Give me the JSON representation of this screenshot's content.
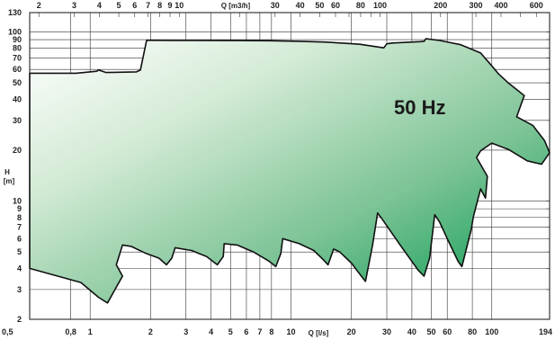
{
  "chart_data": {
    "type": "area",
    "title": "",
    "annotation": "50 Hz",
    "xlabel_bottom": "Q [l/s]",
    "xlabel_top": "Q [m3/h]",
    "ylabel": "H\n[m]",
    "x_scale": "log",
    "y_scale": "log",
    "xlim": [
      0.5,
      194
    ],
    "ylim": [
      2,
      130
    ],
    "grid": true,
    "fill_gradient": [
      "#ffffff",
      "#b9dcbd",
      "#5fb783",
      "#00994c"
    ],
    "outline_color": "#111111",
    "bottom_ticks": [
      {
        "v": 0.5,
        "label": "0,5"
      },
      {
        "v": 0.8,
        "label": "0,8"
      },
      {
        "v": 1,
        "label": "1"
      },
      {
        "v": 2,
        "label": "2"
      },
      {
        "v": 3,
        "label": "3"
      },
      {
        "v": 4,
        "label": "4"
      },
      {
        "v": 5,
        "label": "5"
      },
      {
        "v": 6,
        "label": "6"
      },
      {
        "v": 7,
        "label": "7"
      },
      {
        "v": 8,
        "label": "8"
      },
      {
        "v": 10,
        "label": "10"
      },
      {
        "v": 20,
        "label": "20"
      },
      {
        "v": 30,
        "label": "30"
      },
      {
        "v": 40,
        "label": "40"
      },
      {
        "v": 50,
        "label": "50"
      },
      {
        "v": 60,
        "label": "60"
      },
      {
        "v": 80,
        "label": "80"
      },
      {
        "v": 100,
        "label": "100"
      },
      {
        "v": 194,
        "label": "194"
      }
    ],
    "top_ticks": [
      {
        "v": 2,
        "label": "2"
      },
      {
        "v": 3,
        "label": "3"
      },
      {
        "v": 4,
        "label": "4"
      },
      {
        "v": 5,
        "label": "5"
      },
      {
        "v": 6,
        "label": "6"
      },
      {
        "v": 7,
        "label": "7"
      },
      {
        "v": 8,
        "label": "8"
      },
      {
        "v": 9,
        "label": "9"
      },
      {
        "v": 10,
        "label": "10"
      },
      {
        "v": 30,
        "label": "30"
      },
      {
        "v": 40,
        "label": "40"
      },
      {
        "v": 50,
        "label": "50"
      },
      {
        "v": 60,
        "label": "60"
      },
      {
        "v": 80,
        "label": "80"
      },
      {
        "v": 100,
        "label": "100"
      },
      {
        "v": 200,
        "label": "200"
      },
      {
        "v": 300,
        "label": "300"
      },
      {
        "v": 400,
        "label": "400"
      },
      {
        "v": 600,
        "label": "600"
      }
    ],
    "y_ticks": [
      {
        "v": 2,
        "label": "2"
      },
      {
        "v": 3,
        "label": "3"
      },
      {
        "v": 4,
        "label": "4"
      },
      {
        "v": 5,
        "label": "5"
      },
      {
        "v": 6,
        "label": "6"
      },
      {
        "v": 7,
        "label": "7"
      },
      {
        "v": 8,
        "label": "8"
      },
      {
        "v": 9,
        "label": "9"
      },
      {
        "v": 10,
        "label": "10"
      },
      {
        "v": 20,
        "label": "20"
      },
      {
        "v": 30,
        "label": "30"
      },
      {
        "v": 40,
        "label": "40"
      },
      {
        "v": 50,
        "label": "50"
      },
      {
        "v": 60,
        "label": "60"
      },
      {
        "v": 70,
        "label": "70"
      },
      {
        "v": 80,
        "label": "80"
      },
      {
        "v": 90,
        "label": "90"
      },
      {
        "v": 100,
        "label": "100"
      },
      {
        "v": 130,
        "label": "130"
      }
    ],
    "envelope": [
      [
        0.5,
        4.0
      ],
      [
        0.9,
        3.3
      ],
      [
        1.1,
        2.7
      ],
      [
        1.22,
        2.5
      ],
      [
        1.45,
        3.6
      ],
      [
        1.35,
        4.2
      ],
      [
        1.45,
        5.5
      ],
      [
        1.6,
        5.4
      ],
      [
        1.9,
        4.9
      ],
      [
        2.2,
        4.6
      ],
      [
        2.4,
        4.2
      ],
      [
        2.55,
        4.6
      ],
      [
        2.65,
        5.3
      ],
      [
        3.2,
        5.1
      ],
      [
        3.8,
        4.7
      ],
      [
        4.3,
        4.2
      ],
      [
        4.6,
        4.7
      ],
      [
        4.65,
        5.6
      ],
      [
        5.4,
        5.5
      ],
      [
        6.5,
        5.0
      ],
      [
        7.8,
        4.4
      ],
      [
        8.4,
        4.1
      ],
      [
        8.9,
        4.9
      ],
      [
        9.1,
        6.0
      ],
      [
        11,
        5.6
      ],
      [
        13,
        5.1
      ],
      [
        14.5,
        4.5
      ],
      [
        15.3,
        4.2
      ],
      [
        16.3,
        5.2
      ],
      [
        17.5,
        5.0
      ],
      [
        20,
        4.3
      ],
      [
        22,
        3.7
      ],
      [
        23.5,
        3.35
      ],
      [
        25.5,
        5.5
      ],
      [
        27,
        8.5
      ],
      [
        28.5,
        7.8
      ],
      [
        35,
        5.5
      ],
      [
        43,
        3.9
      ],
      [
        46,
        3.6
      ],
      [
        49,
        4.6
      ],
      [
        52,
        8.3
      ],
      [
        55,
        7.5
      ],
      [
        60,
        6.0
      ],
      [
        68,
        4.4
      ],
      [
        71,
        4.1
      ],
      [
        79,
        6.8
      ],
      [
        81,
        8.1
      ],
      [
        88,
        11.8
      ],
      [
        93,
        10.4
      ],
      [
        95,
        14.0
      ],
      [
        84,
        18.1
      ],
      [
        88,
        19.8
      ],
      [
        100,
        22.0
      ],
      [
        121,
        20.2
      ],
      [
        150,
        17.3
      ],
      [
        177,
        16.5
      ],
      [
        194,
        19.3
      ],
      [
        183,
        22.8
      ],
      [
        160,
        28.0
      ],
      [
        133,
        31.5
      ],
      [
        145,
        42.0
      ],
      [
        120,
        50.3
      ],
      [
        108,
        56.5
      ],
      [
        100,
        63.0
      ],
      [
        88,
        75.0
      ],
      [
        70,
        84.0
      ],
      [
        55,
        89.0
      ],
      [
        47,
        91.0
      ],
      [
        46,
        88.0
      ],
      [
        44,
        87.5
      ],
      [
        32,
        86.0
      ],
      [
        30,
        85.0
      ],
      [
        29,
        80.5
      ],
      [
        22,
        84.5
      ],
      [
        15,
        87.0
      ],
      [
        11,
        88.0
      ],
      [
        8,
        88.6
      ],
      [
        5.5,
        88.8
      ],
      [
        3.3,
        89.0
      ],
      [
        2.65,
        89.0
      ],
      [
        2.0,
        89.2
      ],
      [
        1.91,
        89.2
      ],
      [
        1.78,
        59.5
      ],
      [
        1.7,
        58.0
      ],
      [
        1.2,
        57.5
      ],
      [
        1.1,
        59.5
      ],
      [
        1.08,
        58.5
      ],
      [
        0.85,
        57.0
      ],
      [
        0.5,
        57.0
      ]
    ]
  }
}
